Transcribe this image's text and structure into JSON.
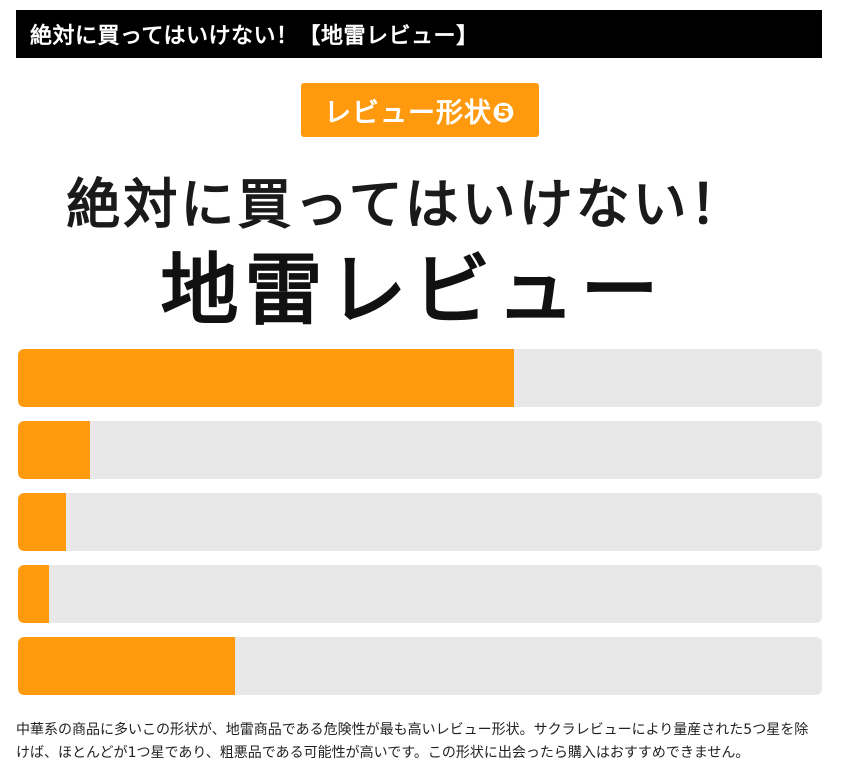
{
  "header": {
    "title": "絶対に買ってはいけない！【地雷レビュー】"
  },
  "badge": {
    "label": "レビュー形状❺"
  },
  "headline": {
    "line1": "絶対に買ってはいけない！",
    "line2": "地雷レビュー"
  },
  "colors": {
    "accent": "#ff9a0f",
    "track": "#e8e8e8",
    "header_bg": "#000000"
  },
  "chart_data": {
    "type": "bar",
    "orientation": "horizontal",
    "values": [
      0.617,
      0.09,
      0.06,
      0.038,
      0.27
    ],
    "xlim": [
      0,
      1
    ],
    "grid": false
  },
  "description": {
    "line1": "中華系の商品に多いこの形状が、地雷商品である危険性が最も高いレビュー形状。サクラレビューにより量産された5つ星を除",
    "line2": "けば、ほとんどが1つ星であり、粗悪品である可能性が高いです。この形状に出会ったら購入はおすすめできません。"
  }
}
